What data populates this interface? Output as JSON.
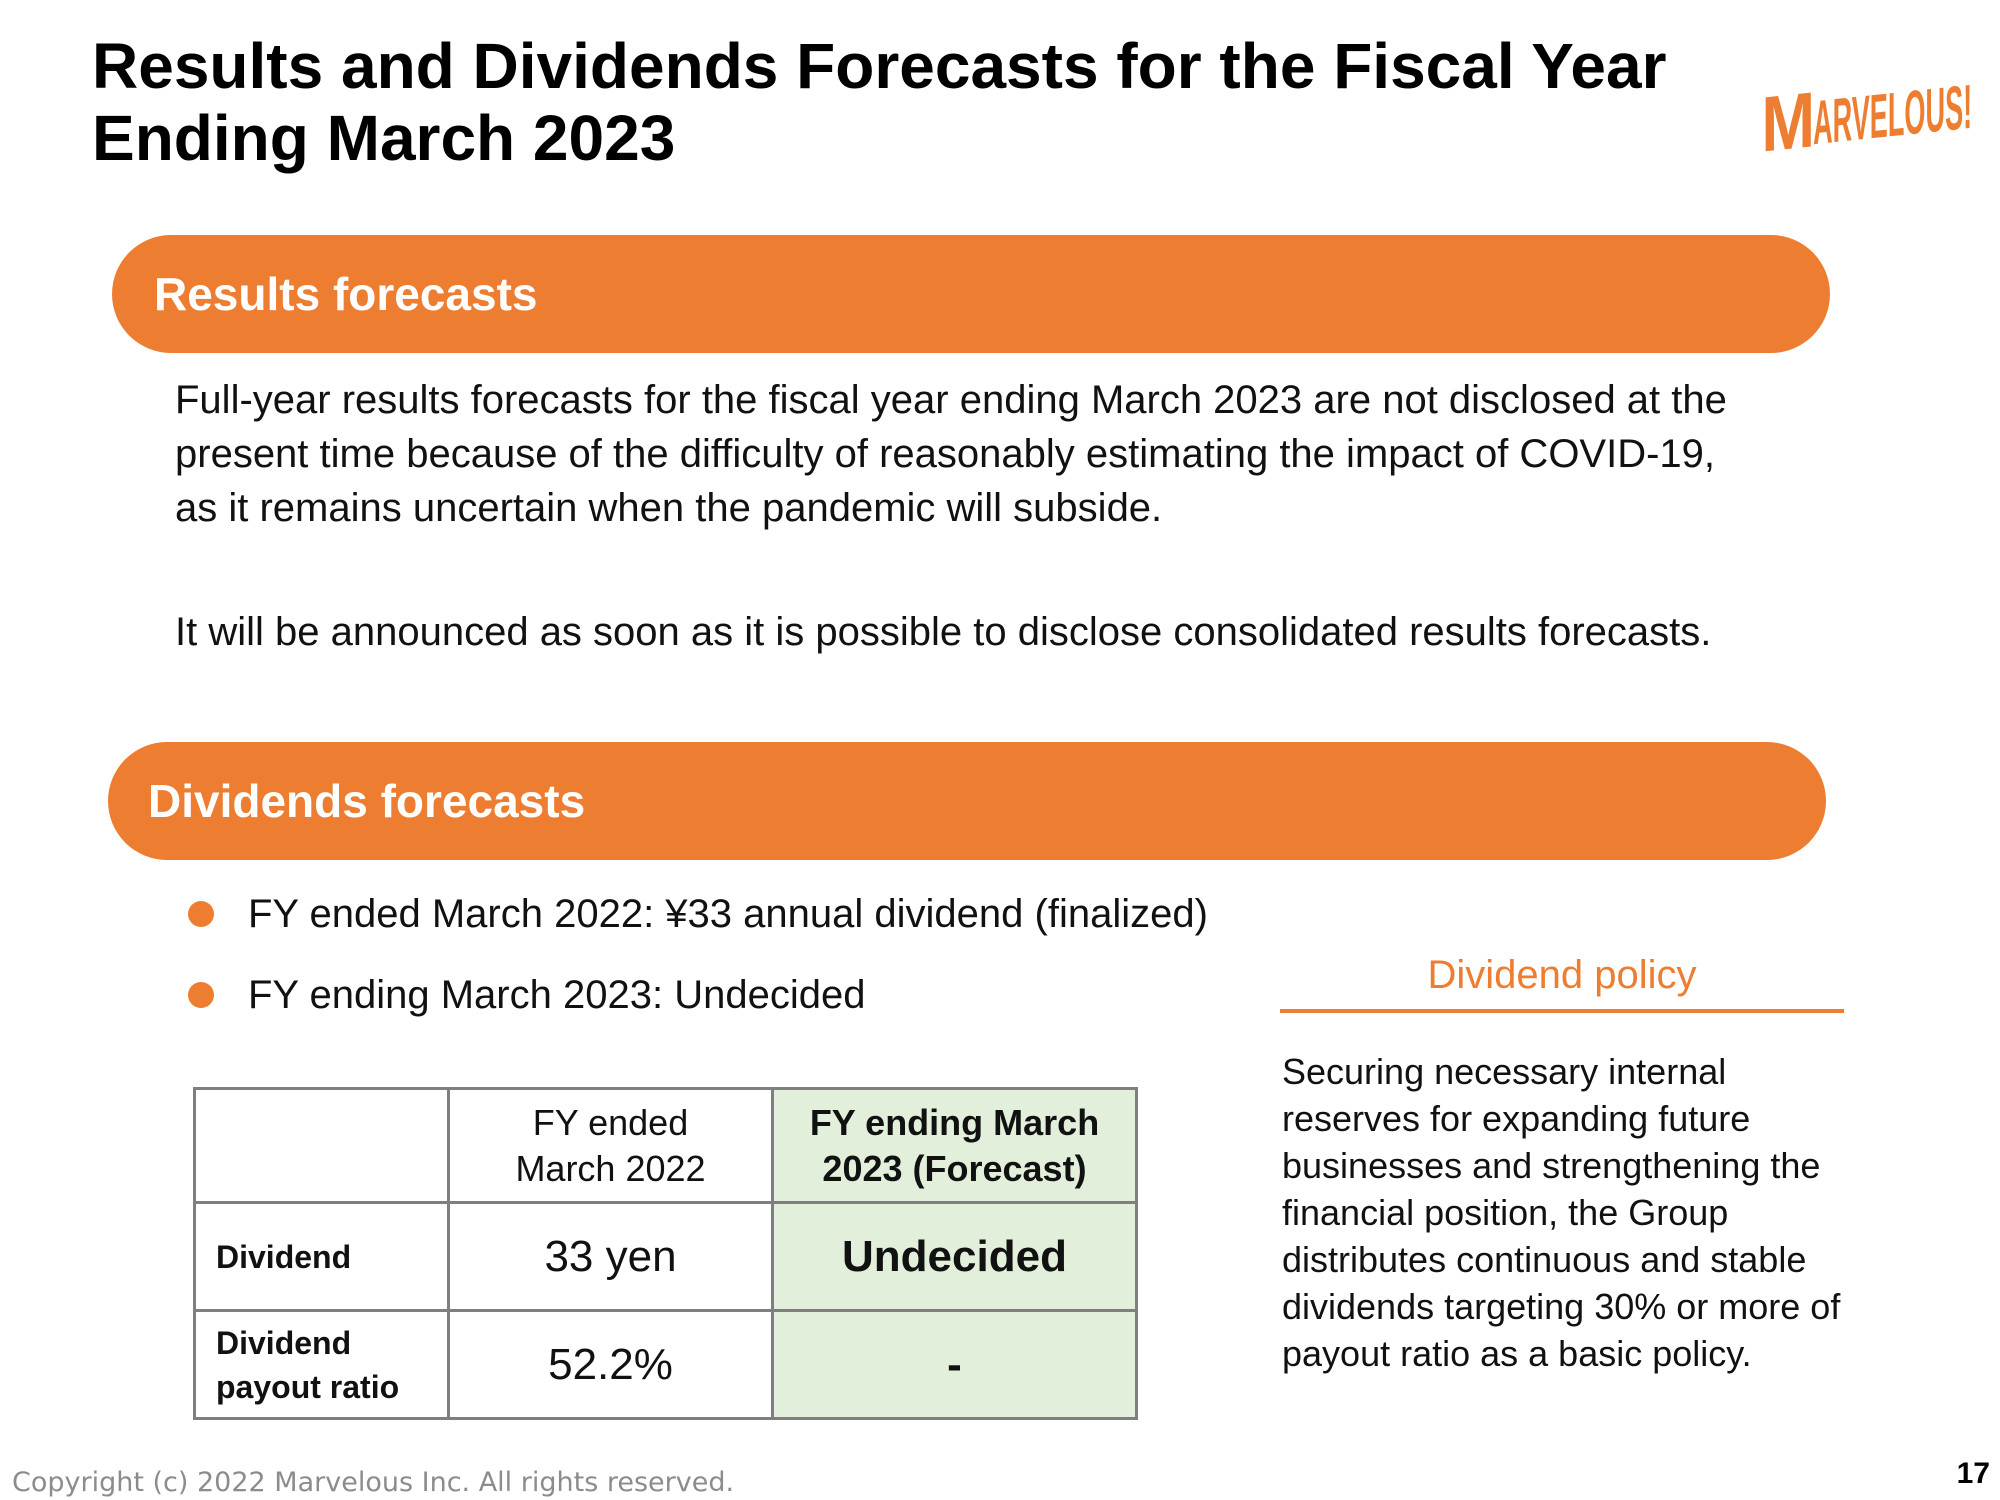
{
  "title": "Results and Dividends Forecasts for the Fiscal Year Ending March 2023",
  "logo": {
    "text": "MARVELOUS!",
    "color": "#ED7D31"
  },
  "results_section": {
    "heading": "Results forecasts",
    "paragraphs": [
      "Full-year results forecasts for the fiscal year ending March 2023 are not disclosed at the present time because of the difficulty of reasonably estimating the impact of COVID-19, as it remains uncertain when the pandemic will subside.",
      "It will be announced as soon as it is possible to disclose consolidated results forecasts."
    ]
  },
  "dividends_section": {
    "heading": "Dividends forecasts",
    "bullets": [
      "FY ended March 2022: ¥33 annual dividend (finalized)",
      "FY ending March 2023: Undecided"
    ],
    "table": {
      "headers": [
        "",
        "FY ended March 2022",
        "FY ending March 2023 (Forecast)"
      ],
      "rows": [
        {
          "label": "Dividend",
          "fy2022": "33 yen",
          "fy2023": "Undecided"
        },
        {
          "label": "Dividend payout ratio",
          "fy2022": "52.2%",
          "fy2023": "-"
        }
      ]
    },
    "policy": {
      "heading": "Dividend policy",
      "text": "Securing necessary internal reserves for expanding future businesses and strengthening the financial position, the Group distributes continuous and stable dividends targeting 30% or more of payout ratio as a basic policy."
    }
  },
  "footer": {
    "copyright": "Copyright (c) 2022 Marvelous Inc. All rights reserved.",
    "page_number": "17"
  },
  "colors": {
    "accent": "#ED7D31",
    "forecast_cell": "#E2EFDA",
    "table_border": "#7f7f7f"
  }
}
